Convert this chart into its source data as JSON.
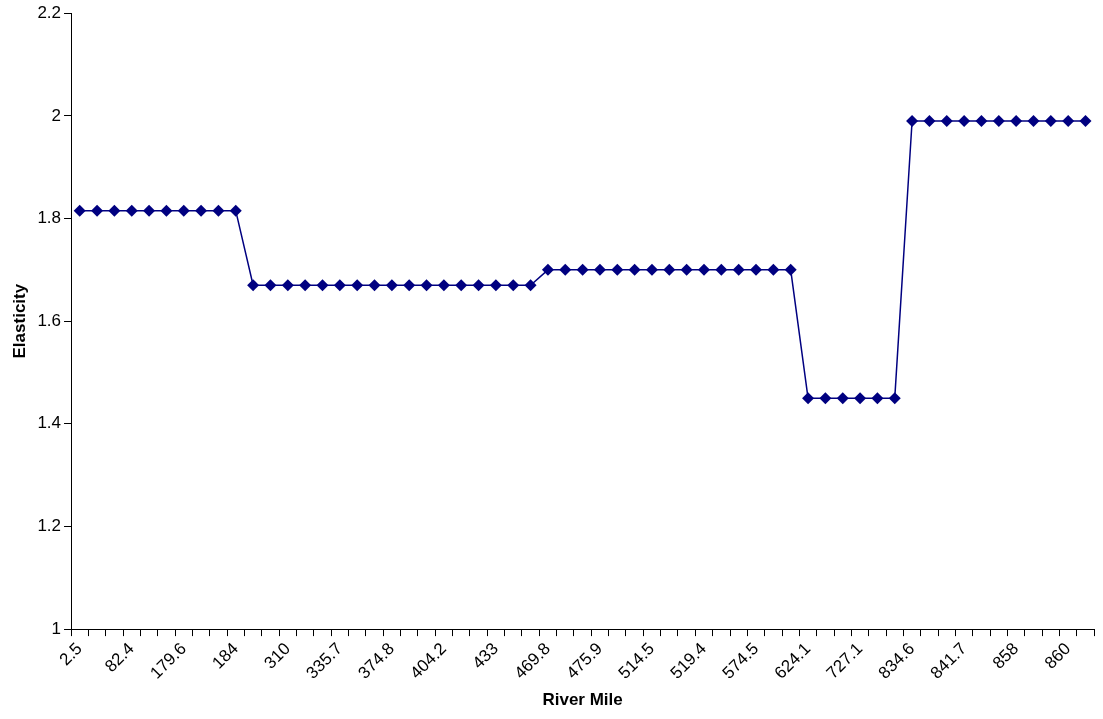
{
  "chart_data": {
    "type": "line",
    "xlabel": "River Mile",
    "ylabel": "Elasticity",
    "categories": [
      "2.5",
      null,
      null,
      "82.4",
      null,
      null,
      "179.6",
      null,
      null,
      "184",
      null,
      null,
      "310",
      null,
      null,
      "335.7",
      null,
      null,
      "374.8",
      null,
      null,
      "404.2",
      null,
      null,
      "433",
      null,
      null,
      "469.8",
      null,
      null,
      "475.9",
      null,
      null,
      "514.5",
      null,
      null,
      "519.4",
      null,
      null,
      "574.5",
      null,
      null,
      "624.1",
      null,
      null,
      "727.1",
      null,
      null,
      "834.6",
      null,
      null,
      "841.7",
      null,
      null,
      "858",
      null,
      null,
      "860",
      null
    ],
    "series": [
      {
        "color": "#000080",
        "values": [
          1.815,
          1.815,
          1.815,
          1.815,
          1.815,
          1.815,
          1.815,
          1.815,
          1.815,
          1.815,
          1.67,
          1.67,
          1.67,
          1.67,
          1.67,
          1.67,
          1.67,
          1.67,
          1.67,
          1.67,
          1.67,
          1.67,
          1.67,
          1.67,
          1.67,
          1.67,
          1.67,
          1.7,
          1.7,
          1.7,
          1.7,
          1.7,
          1.7,
          1.7,
          1.7,
          1.7,
          1.7,
          1.7,
          1.7,
          1.7,
          1.7,
          1.7,
          1.45,
          1.45,
          1.45,
          1.45,
          1.45,
          1.45,
          1.99,
          1.99,
          1.99,
          1.99,
          1.99,
          1.99,
          1.99,
          1.99,
          1.99,
          1.99,
          1.99
        ]
      }
    ],
    "ylim": [
      1,
      2.2
    ],
    "yticks": [
      1,
      1.2,
      1.4,
      1.6,
      1.8,
      2,
      2.2
    ],
    "grid": false,
    "legend": false,
    "marker": "diamond",
    "line_style": "solid"
  }
}
